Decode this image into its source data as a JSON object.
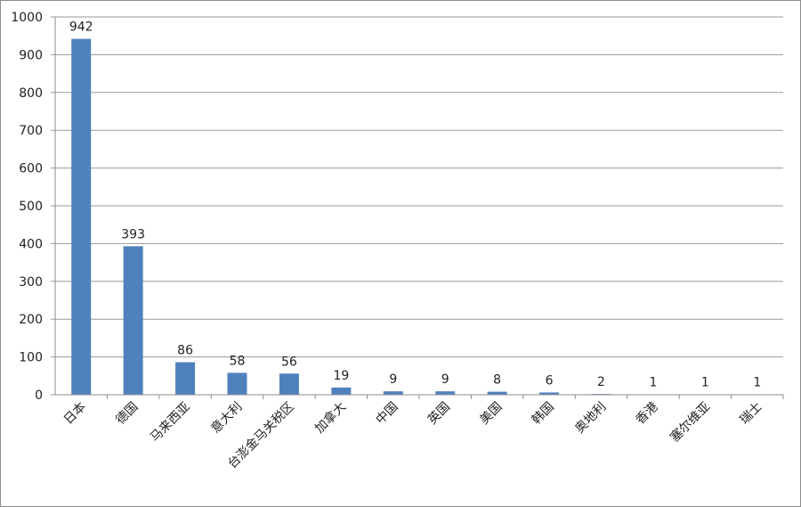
{
  "chart_data": {
    "type": "bar",
    "categories": [
      "日本",
      "德国",
      "马来西亚",
      "意大利",
      "台澎金马关税区",
      "加拿大",
      "中国",
      "英国",
      "美国",
      "韩国",
      "奥地利",
      "香港",
      "塞尔维亚",
      "瑞士"
    ],
    "values": [
      942,
      393,
      86,
      58,
      56,
      19,
      9,
      9,
      8,
      6,
      2,
      1,
      1,
      1
    ],
    "color": "#4f81bd",
    "ylim": [
      0,
      1000
    ],
    "yticks": [
      0,
      100,
      200,
      300,
      400,
      500,
      600,
      700,
      800,
      900,
      1000
    ],
    "grid": true
  }
}
